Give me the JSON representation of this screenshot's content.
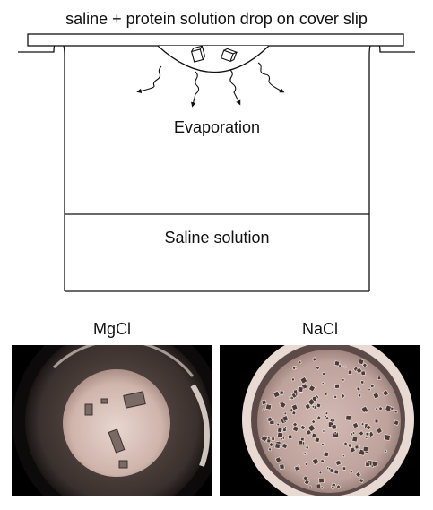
{
  "diagram": {
    "title": "saline + protein solution drop on cover slip",
    "evaporation_label": "Evaporation",
    "reservoir_label": "Saline solution"
  },
  "photos": [
    {
      "label": "MgCl"
    },
    {
      "label": "NaCl"
    }
  ],
  "colors": {
    "line": "#111111",
    "photo_bg": "#000000",
    "drop_tint": "#c9ada5",
    "rim_tint": "#efe3dc"
  }
}
